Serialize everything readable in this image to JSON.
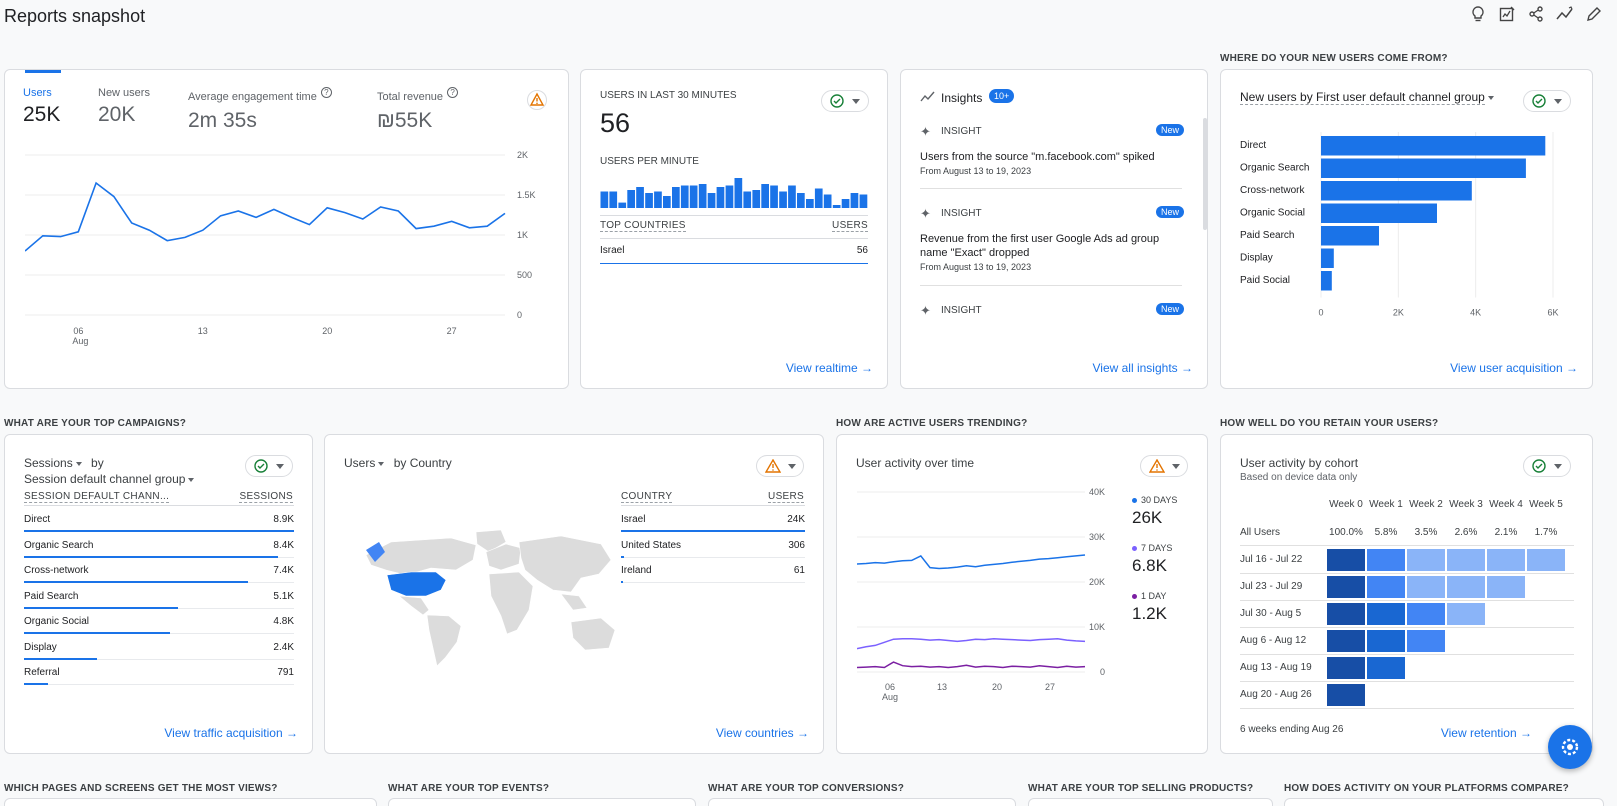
{
  "page_title": "Reports snapshot",
  "toolbar": [
    {
      "name": "insights-bulb-icon"
    },
    {
      "name": "customize-report-icon"
    },
    {
      "name": "share-icon"
    },
    {
      "name": "compare-icon"
    },
    {
      "name": "edit-icon"
    }
  ],
  "overview": {
    "metrics": [
      {
        "label": "Users",
        "value": "25K",
        "active": true
      },
      {
        "label": "New users",
        "value": "20K",
        "active": false
      },
      {
        "label": "Average engagement time",
        "value": "2m 35s",
        "active": false,
        "help": true
      },
      {
        "label": "Total revenue",
        "value": "₪55K",
        "active": false,
        "help": true
      }
    ],
    "chart": {
      "yticks": [
        "2K",
        "1.5K",
        "1K",
        "500",
        "0"
      ],
      "xticks": [
        {
          "label": "06",
          "sub": "Aug"
        },
        {
          "label": "13",
          "sub": ""
        },
        {
          "label": "20",
          "sub": ""
        },
        {
          "label": "27",
          "sub": ""
        }
      ],
      "values": [
        800,
        990,
        980,
        1040,
        1650,
        1480,
        1150,
        1060,
        930,
        970,
        1060,
        1240,
        1300,
        1220,
        1320,
        1220,
        1130,
        1340,
        1280,
        1200,
        1350,
        1300,
        1080,
        1110,
        1170,
        1090,
        1110,
        1270
      ]
    }
  },
  "realtime": {
    "users_label": "USERS IN LAST 30 MINUTES",
    "users_value": "56",
    "per_minute_label": "USERS PER MINUTE",
    "bars": [
      0.55,
      0.55,
      0.18,
      0.6,
      0.7,
      0.5,
      0.55,
      0.4,
      0.7,
      0.75,
      0.75,
      0.8,
      0.5,
      0.7,
      0.75,
      1.0,
      0.55,
      0.6,
      0.8,
      0.75,
      0.55,
      0.75,
      0.5,
      0.3,
      0.65,
      0.45,
      0.1,
      0.3,
      0.5,
      0.45
    ],
    "top_countries_label": "TOP COUNTRIES",
    "users_col_label": "USERS",
    "rows": [
      {
        "country": "Israel",
        "users": "56"
      }
    ],
    "link": "View realtime"
  },
  "insights": {
    "title": "Insights",
    "badge": "10+",
    "items": [
      {
        "tag": "INSIGHT",
        "badge": "New",
        "title": "Users from the source \"m.facebook.com\" spiked",
        "sub": "From August 13 to 19, 2023"
      },
      {
        "tag": "INSIGHT",
        "badge": "New",
        "title": "Revenue from the first user Google Ads ad group name \"Exact\" dropped",
        "sub": "From August 13 to 19, 2023"
      },
      {
        "tag": "INSIGHT",
        "badge": "New",
        "title": "",
        "sub": ""
      }
    ],
    "link": "View all insights"
  },
  "acquisition": {
    "section": "WHERE DO YOUR NEW USERS COME FROM?",
    "title": "New users by First user default channel group",
    "chart_data": {
      "type": "bar",
      "orientation": "horizontal",
      "categories": [
        "Direct",
        "Organic Search",
        "Cross-network",
        "Organic Social",
        "Paid Search",
        "Display",
        "Paid Social"
      ],
      "values": [
        5800,
        5300,
        3900,
        3000,
        1500,
        330,
        280
      ],
      "xlim": [
        0,
        6000
      ],
      "xticks": [
        "0",
        "2K",
        "4K",
        "6K"
      ],
      "color": "#1a73e8"
    },
    "link": "View user acquisition"
  },
  "campaigns": {
    "section": "WHAT ARE YOUR TOP CAMPAIGNS?",
    "metric": "Sessions",
    "by": "by",
    "dimension": "Session default channel group",
    "col1": "SESSION DEFAULT CHANN...",
    "col2": "SESSIONS",
    "rows": [
      {
        "label": "Direct",
        "value": "8.9K",
        "frac": 1.0
      },
      {
        "label": "Organic Search",
        "value": "8.4K",
        "frac": 0.94
      },
      {
        "label": "Cross-network",
        "value": "7.4K",
        "frac": 0.83
      },
      {
        "label": "Paid Search",
        "value": "5.1K",
        "frac": 0.57
      },
      {
        "label": "Organic Social",
        "value": "4.8K",
        "frac": 0.54
      },
      {
        "label": "Display",
        "value": "2.4K",
        "frac": 0.27
      },
      {
        "label": "Referral",
        "value": "791",
        "frac": 0.09
      }
    ],
    "link": "View traffic acquisition"
  },
  "country": {
    "metric": "Users",
    "by": "by Country",
    "col1": "COUNTRY",
    "col2": "USERS",
    "rows": [
      {
        "label": "Israel",
        "value": "24K",
        "frac": 1.0
      },
      {
        "label": "United States",
        "value": "306",
        "frac": 0.015
      },
      {
        "label": "Ireland",
        "value": "61",
        "frac": 0.004
      }
    ],
    "link": "View countries"
  },
  "trending": {
    "section": "HOW ARE ACTIVE USERS TRENDING?",
    "title": "User activity over time",
    "yticks": [
      "40K",
      "30K",
      "20K",
      "10K",
      "0"
    ],
    "xticks": [
      {
        "label": "06",
        "sub": "Aug"
      },
      {
        "label": "13",
        "sub": ""
      },
      {
        "label": "20",
        "sub": ""
      },
      {
        "label": "27",
        "sub": ""
      }
    ],
    "legend": [
      {
        "label": "30 DAYS",
        "value": "26K",
        "color": "#1a73e8"
      },
      {
        "label": "7 DAYS",
        "value": "6.8K",
        "color": "#7b61ff"
      },
      {
        "label": "1 DAY",
        "value": "1.2K",
        "color": "#7b1fa2"
      }
    ],
    "series_30": [
      24000,
      24100,
      24300,
      24200,
      24500,
      24700,
      24800,
      25800,
      23200,
      23000,
      23100,
      23300,
      23600,
      23400,
      23700,
      23900,
      24100,
      24400,
      24600,
      24800,
      25100,
      25200,
      25400,
      25600,
      25800,
      26000
    ],
    "series_7": [
      5200,
      5600,
      5900,
      6600,
      7300,
      7400,
      7400,
      7300,
      7100,
      7200,
      7000,
      6800,
      7000,
      7300,
      7200,
      7400,
      7300,
      7200,
      7100,
      7000,
      7200,
      7300,
      7400,
      7100,
      6900,
      6800
    ],
    "series_1": [
      1000,
      1100,
      1200,
      1000,
      2200,
      1400,
      1200,
      1300,
      1100,
      1200,
      1000,
      1200,
      1500,
      1100,
      1300,
      1200,
      1000,
      1300,
      1200,
      1100,
      1400,
      1200,
      1000,
      1300,
      1100,
      1200
    ]
  },
  "retention": {
    "section": "HOW WELL DO YOU RETAIN YOUR USERS?",
    "title": "User activity by cohort",
    "subtitle": "Based on device data only",
    "weeks": [
      "Week 0",
      "Week 1",
      "Week 2",
      "Week 3",
      "Week 4",
      "Week 5"
    ],
    "all_users_label": "All Users",
    "all_users": [
      "100.0%",
      "5.8%",
      "3.5%",
      "2.6%",
      "2.1%",
      "1.7%"
    ],
    "cohorts": [
      {
        "label": "Jul 16 - Jul 22",
        "cells": 6
      },
      {
        "label": "Jul 23 - Jul 29",
        "cells": 5
      },
      {
        "label": "Jul 30 - Aug 5",
        "cells": 4
      },
      {
        "label": "Aug 6 - Aug 12",
        "cells": 3
      },
      {
        "label": "Aug 13 - Aug 19",
        "cells": 2
      },
      {
        "label": "Aug 20 - Aug 26",
        "cells": 1
      }
    ],
    "footer": "6 weeks ending Aug 26",
    "link": "View retention",
    "shades": [
      "#174ea6",
      "#4285f4",
      "#8ab4f8",
      "#8ab4f8",
      "#8ab4f8",
      "#8ab4f8"
    ]
  },
  "bottom_sections": [
    "WHICH PAGES AND SCREENS GET THE MOST VIEWS?",
    "WHAT ARE YOUR TOP EVENTS?",
    "WHAT ARE YOUR TOP CONVERSIONS?",
    "WHAT ARE YOUR TOP SELLING PRODUCTS?",
    "HOW DOES ACTIVITY ON YOUR PLATFORMS COMPARE?"
  ]
}
